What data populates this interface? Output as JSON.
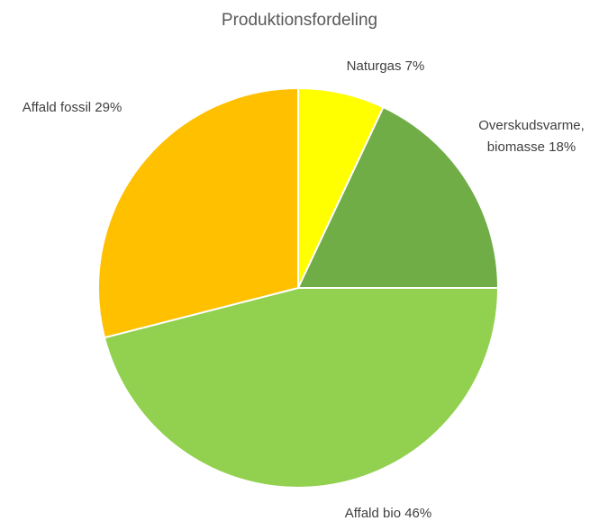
{
  "chart_data": {
    "type": "pie",
    "title": "Produktionsfordeling",
    "slices": [
      {
        "name": "Naturgas",
        "value": 7,
        "label_lines": [
          "Naturgas 7%"
        ],
        "color": "#FFFF00"
      },
      {
        "name": "Overskudsvarme, biomasse",
        "value": 18,
        "label_lines": [
          "Overskudsvarme,",
          "biomasse 18%"
        ],
        "color": "#70AD47"
      },
      {
        "name": "Affald bio",
        "value": 46,
        "label_lines": [
          "Affald bio 46%"
        ],
        "color": "#92D050"
      },
      {
        "name": "Affald fossil",
        "value": 29,
        "label_lines": [
          "Affald fossil 29%"
        ],
        "color": "#FFC000"
      }
    ],
    "legend": "none"
  }
}
